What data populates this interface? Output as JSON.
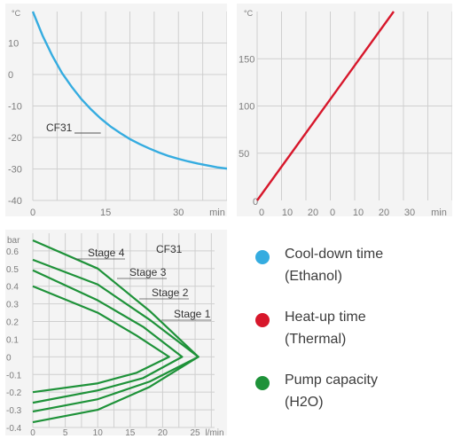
{
  "colors": {
    "cooldown": "#35ace0",
    "heatup": "#d7172b",
    "pump": "#1e9239",
    "grid": "#cfcfcf",
    "panel_bg": "#f4f4f4"
  },
  "legend": [
    {
      "line1": "Cool-down time",
      "line2": "(Ethanol)",
      "color": "#35ace0"
    },
    {
      "line1": "Heat-up time",
      "line2": "(Thermal)",
      "color": "#d7172b"
    },
    {
      "line1": "Pump capacity",
      "line2": "(H2O)",
      "color": "#1e9239"
    }
  ],
  "chart_data": [
    {
      "type": "line",
      "title": "",
      "xlabel": "",
      "ylabel": "",
      "x_unit": "min",
      "y_unit": "°C",
      "xlim": [
        0,
        40
      ],
      "ylim": [
        -40,
        20
      ],
      "xticks": [
        0,
        15,
        30
      ],
      "yticks": [
        10,
        0,
        -10,
        -20,
        -30,
        -40
      ],
      "grid": true,
      "series": [
        {
          "name": "CF31",
          "color": "#35ace0",
          "x": [
            0,
            2,
            4,
            6,
            8,
            10,
            12,
            14,
            16,
            18,
            20,
            22,
            24,
            26,
            28,
            30,
            32,
            34,
            36,
            38,
            40
          ],
          "y": [
            20,
            12.4,
            6.0,
            0.5,
            -3.9,
            -7.8,
            -11.1,
            -14.0,
            -16.5,
            -18.6,
            -20.5,
            -22.1,
            -23.5,
            -24.8,
            -25.9,
            -26.8,
            -27.6,
            -28.3,
            -28.9,
            -29.5,
            -29.9
          ]
        }
      ],
      "annotations": [
        {
          "text": "CF31",
          "x": 14,
          "y": -18.6
        }
      ]
    },
    {
      "type": "line",
      "title": "",
      "xlabel": "",
      "ylabel": "",
      "x_unit": "min",
      "y_unit": "°C",
      "xlim": [
        0,
        40
      ],
      "ylim": [
        0,
        200
      ],
      "xticks": [
        0,
        10,
        20
      ],
      "xticks_second": [
        0,
        10,
        20,
        30
      ],
      "yticks": [
        50,
        100,
        150
      ],
      "grid": true,
      "series": [
        {
          "name": "",
          "color": "#d7172b",
          "x": [
            0,
            20
          ],
          "y": [
            0,
            200
          ]
        }
      ]
    },
    {
      "type": "line",
      "title": "CF31",
      "xlabel": "",
      "ylabel": "",
      "x_unit": "l/min",
      "y_unit": "bar",
      "xlim": [
        0,
        28
      ],
      "ylim": [
        -0.4,
        0.7
      ],
      "xticks": [
        0,
        5,
        10,
        15,
        20,
        25
      ],
      "yticks": [
        0.6,
        0.5,
        0.4,
        0.3,
        0.2,
        0.1,
        0,
        -0.1,
        -0.2,
        -0.3,
        -0.4
      ],
      "grid": true,
      "series": [
        {
          "name": "Stage 4",
          "color": "#1e9239",
          "x": [
            0,
            10,
            18,
            25.5,
            18,
            10,
            0
          ],
          "y": [
            0.66,
            0.5,
            0.26,
            0,
            -0.17,
            -0.3,
            -0.37
          ]
        },
        {
          "name": "Stage 3",
          "color": "#1e9239",
          "x": [
            0,
            10,
            18,
            25.5,
            18,
            10,
            0
          ],
          "y": [
            0.55,
            0.41,
            0.21,
            0,
            -0.14,
            -0.24,
            -0.31
          ]
        },
        {
          "name": "Stage 2",
          "color": "#1e9239",
          "x": [
            0,
            10,
            17,
            23,
            17,
            10,
            0
          ],
          "y": [
            0.49,
            0.32,
            0.17,
            0,
            -0.12,
            -0.19,
            -0.26
          ]
        },
        {
          "name": "Stage 1",
          "color": "#1e9239",
          "x": [
            0,
            10,
            16,
            21,
            16,
            10,
            0
          ],
          "y": [
            0.4,
            0.25,
            0.12,
            0,
            -0.09,
            -0.15,
            -0.2
          ]
        }
      ]
    }
  ]
}
